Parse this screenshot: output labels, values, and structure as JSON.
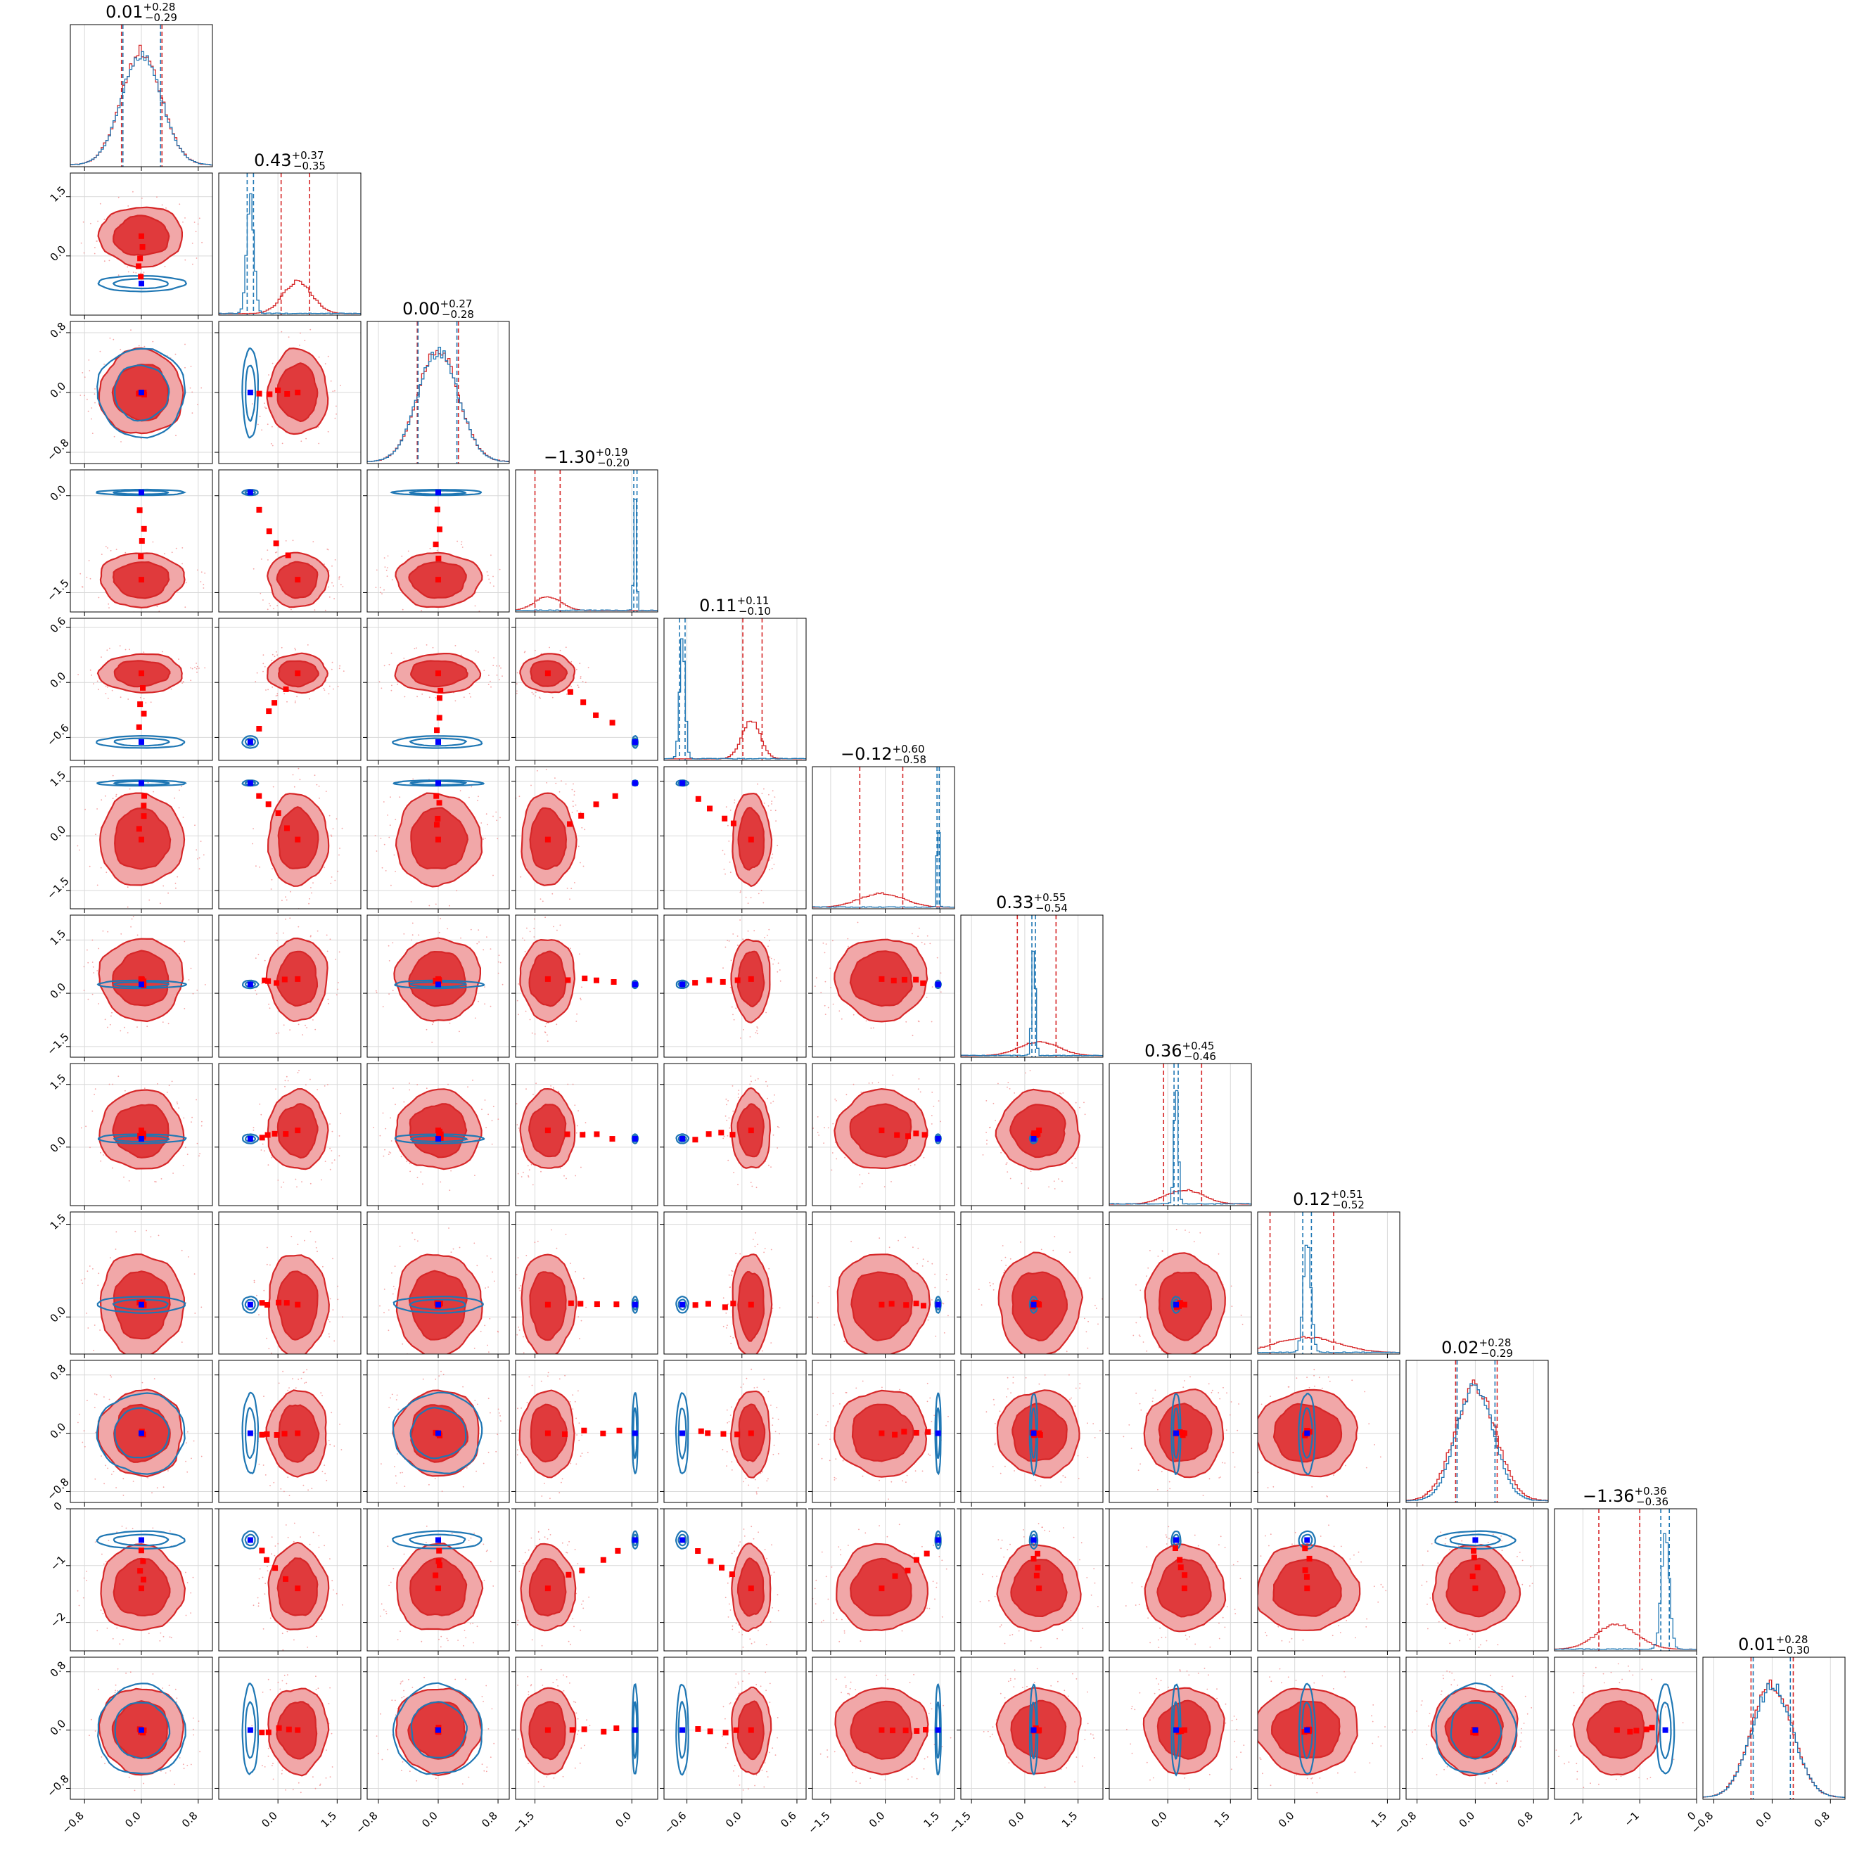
{
  "chart_data": {
    "type": "corner",
    "n_params": 12,
    "colors": {
      "red": "#d62728",
      "blue": "#1f77b4",
      "red_fill_outer": "#f1a7a8",
      "red_fill_inner": "#e03a3c",
      "marker_blue": "#0000ff",
      "marker_red": "#ff0000"
    },
    "titles": [
      {
        "median": "0.01",
        "plus": "+0.28",
        "minus": "−0.29"
      },
      {
        "median": "0.43",
        "plus": "+0.37",
        "minus": "−0.35"
      },
      {
        "median": "0.00",
        "plus": "+0.27",
        "minus": "−0.28"
      },
      {
        "median": "−1.30",
        "plus": "+0.19",
        "minus": "−0.20"
      },
      {
        "median": "0.11",
        "plus": "+0.11",
        "minus": "−0.10"
      },
      {
        "median": "−0.12",
        "plus": "+0.60",
        "minus": "−0.58"
      },
      {
        "median": "0.33",
        "plus": "+0.55",
        "minus": "−0.54"
      },
      {
        "median": "0.36",
        "plus": "+0.45",
        "minus": "−0.46"
      },
      {
        "median": "0.12",
        "plus": "+0.51",
        "minus": "−0.52"
      },
      {
        "median": "0.02",
        "plus": "+0.28",
        "minus": "−0.29"
      },
      {
        "median": "−1.36",
        "plus": "+0.36",
        "minus": "−0.36"
      },
      {
        "median": "0.01",
        "plus": "+0.28",
        "minus": "−0.30"
      }
    ],
    "ranges": [
      [
        -1.0,
        1.0
      ],
      [
        -1.5,
        2.1
      ],
      [
        -0.95,
        0.95
      ],
      [
        -1.8,
        0.4
      ],
      [
        -0.85,
        0.7
      ],
      [
        -2.0,
        1.9
      ],
      [
        -1.8,
        2.2
      ],
      [
        -1.4,
        2.0
      ],
      [
        -0.6,
        1.7
      ],
      [
        -0.95,
        1.0
      ],
      [
        -2.5,
        0.0
      ],
      [
        -0.95,
        1.0
      ]
    ],
    "yticks": [
      null,
      [
        "1.5",
        "0.0"
      ],
      [
        "0.8",
        "0.0",
        "−0.8"
      ],
      [
        "0.0",
        "−1.5"
      ],
      [
        "0.6",
        "0.0",
        "−0.6"
      ],
      [
        "1.5",
        "0.0",
        "−1.5"
      ],
      [
        "1.5",
        "0.0",
        "−1.5"
      ],
      [
        "1.5",
        "0.0"
      ],
      [
        "1.5",
        "0.0"
      ],
      [
        "0.8",
        "0.0",
        "−0.8"
      ],
      [
        "0",
        "−1",
        "−2"
      ],
      [
        "0.8",
        "0.0",
        "−0.8"
      ]
    ],
    "xticks": [
      [
        "−0.8",
        "0.0",
        "0.8"
      ],
      [
        "0.0",
        "1.5"
      ],
      [
        "−0.8",
        "0.0",
        "0.8"
      ],
      [
        "−1.5",
        "0.0"
      ],
      [
        "−0.6",
        "0.0",
        "0.6"
      ],
      [
        "−1.5",
        "0.0",
        "1.5"
      ],
      [
        "−1.5",
        "0.0",
        "1.5"
      ],
      [
        "0.0",
        "1.5"
      ],
      [
        "0.0",
        "1.5"
      ],
      [
        "−0.8",
        "0.0",
        "0.8"
      ],
      [
        "−2",
        "−1",
        "0"
      ],
      [
        "−0.8",
        "0.0",
        "0.8"
      ]
    ],
    "red_true": [
      0.0,
      0.5,
      0.0,
      -1.3,
      0.1,
      -0.1,
      0.4,
      0.4,
      0.2,
      0.0,
      -1.4,
      0.0
    ],
    "blue_true": [
      0.0,
      -0.7,
      0.0,
      0.05,
      -0.65,
      1.45,
      0.25,
      0.2,
      0.2,
      0.0,
      -0.55,
      0.0
    ],
    "red_sigma": [
      0.28,
      0.36,
      0.27,
      0.2,
      0.1,
      0.6,
      0.55,
      0.45,
      0.5,
      0.28,
      0.36,
      0.28
    ],
    "blue_sigma": [
      0.28,
      0.09,
      0.27,
      0.02,
      0.03,
      0.03,
      0.05,
      0.05,
      0.06,
      0.25,
      0.07,
      0.28
    ],
    "red_quantiles": [
      [
        -0.28,
        0.29
      ],
      [
        0.08,
        0.8
      ],
      [
        -0.28,
        0.27
      ],
      [
        -1.5,
        -1.11
      ],
      [
        0.01,
        0.22
      ],
      [
        -0.7,
        0.48
      ],
      [
        -0.21,
        0.88
      ],
      [
        -0.1,
        0.81
      ],
      [
        -0.4,
        0.63
      ],
      [
        -0.27,
        0.3
      ],
      [
        -1.72,
        -1.0
      ],
      [
        -0.29,
        0.29
      ]
    ],
    "blue_quantiles": [
      [
        -0.26,
        0.27
      ],
      [
        -0.78,
        -0.62
      ],
      [
        -0.27,
        0.25
      ],
      [
        0.03,
        0.08
      ],
      [
        -0.68,
        -0.62
      ],
      [
        1.42,
        1.48
      ],
      [
        0.2,
        0.3
      ],
      [
        0.15,
        0.25
      ],
      [
        0.13,
        0.27
      ],
      [
        -0.25,
        0.27
      ],
      [
        -0.63,
        -0.48
      ],
      [
        -0.26,
        0.25
      ]
    ]
  }
}
